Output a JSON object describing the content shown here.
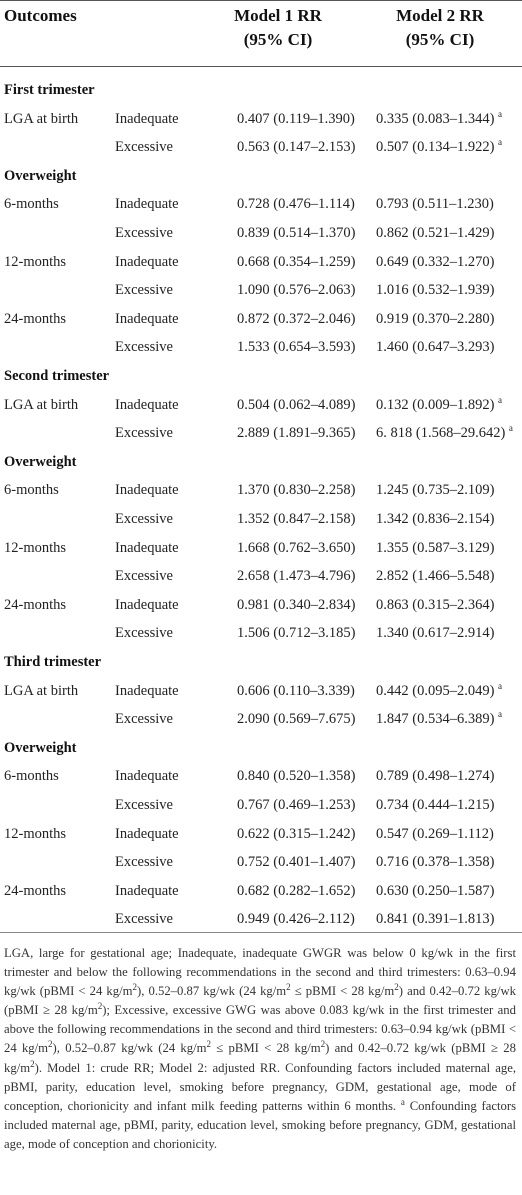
{
  "header": {
    "outcomes": "Outcomes",
    "model1_line1": "Model 1 RR",
    "model1_line2": "(95% CI)",
    "model2_line1": "Model 2 RR",
    "model2_line2": "(95% CI)"
  },
  "rows": [
    {
      "type": "section",
      "title": "First trimester"
    },
    {
      "type": "data",
      "outcome": "LGA at birth",
      "level": "Inadequate",
      "m1": "0.407 (0.119–1.390)",
      "m2": "0.335 (0.083–1.344)",
      "mark": "a"
    },
    {
      "type": "data",
      "outcome": "",
      "level": "Excessive",
      "m1": "0.563 (0.147–2.153)",
      "m2": "0.507 (0.134–1.922)",
      "mark": "a"
    },
    {
      "type": "section",
      "title": "Overweight"
    },
    {
      "type": "data",
      "outcome": "6-months",
      "level": "Inadequate",
      "m1": "0.728 (0.476–1.114)",
      "m2": "0.793 (0.511–1.230)",
      "mark": ""
    },
    {
      "type": "data",
      "outcome": "",
      "level": "Excessive",
      "m1": "0.839 (0.514–1.370)",
      "m2": "0.862 (0.521–1.429)",
      "mark": ""
    },
    {
      "type": "data",
      "outcome": "12-months",
      "level": "Inadequate",
      "m1": "0.668 (0.354–1.259)",
      "m2": "0.649 (0.332–1.270)",
      "mark": ""
    },
    {
      "type": "data",
      "outcome": "",
      "level": "Excessive",
      "m1": "1.090 (0.576–2.063)",
      "m2": "1.016 (0.532–1.939)",
      "mark": ""
    },
    {
      "type": "data",
      "outcome": "24-months",
      "level": "Inadequate",
      "m1": "0.872 (0.372–2.046)",
      "m2": "0.919 (0.370–2.280)",
      "mark": ""
    },
    {
      "type": "data",
      "outcome": "",
      "level": "Excessive",
      "m1": "1.533 (0.654–3.593)",
      "m2": "1.460 (0.647–3.293)",
      "mark": ""
    },
    {
      "type": "section",
      "title": "Second trimester"
    },
    {
      "type": "data",
      "outcome": "LGA at birth",
      "level": "Inadequate",
      "m1": "0.504 (0.062–4.089)",
      "m2": "0.132 (0.009–1.892)",
      "mark": "a"
    },
    {
      "type": "data",
      "outcome": "",
      "level": "Excessive",
      "m1": "2.889 (1.891–9.365)",
      "m2": "6. 818 (1.568–29.642)",
      "mark": "a"
    },
    {
      "type": "section",
      "title": "Overweight"
    },
    {
      "type": "data",
      "outcome": "6-months",
      "level": "Inadequate",
      "m1": "1.370 (0.830–2.258)",
      "m2": "1.245 (0.735–2.109)",
      "mark": ""
    },
    {
      "type": "data",
      "outcome": "",
      "level": "Excessive",
      "m1": "1.352 (0.847–2.158)",
      "m2": "1.342 (0.836–2.154)",
      "mark": ""
    },
    {
      "type": "data",
      "outcome": "12-months",
      "level": "Inadequate",
      "m1": "1.668 (0.762–3.650)",
      "m2": "1.355 (0.587–3.129)",
      "mark": ""
    },
    {
      "type": "data",
      "outcome": "",
      "level": "Excessive",
      "m1": "2.658 (1.473–4.796)",
      "m2": "2.852 (1.466–5.548)",
      "mark": ""
    },
    {
      "type": "data",
      "outcome": "24-months",
      "level": "Inadequate",
      "m1": "0.981 (0.340–2.834)",
      "m2": "0.863 (0.315–2.364)",
      "mark": ""
    },
    {
      "type": "data",
      "outcome": "",
      "level": "Excessive",
      "m1": "1.506 (0.712–3.185)",
      "m2": "1.340 (0.617–2.914)",
      "mark": ""
    },
    {
      "type": "section",
      "title": "Third trimester"
    },
    {
      "type": "data",
      "outcome": "LGA at birth",
      "level": "Inadequate",
      "m1": "0.606 (0.110–3.339)",
      "m2": "0.442 (0.095–2.049)",
      "mark": "a"
    },
    {
      "type": "data",
      "outcome": "",
      "level": "Excessive",
      "m1": "2.090 (0.569–7.675)",
      "m2": "1.847 (0.534–6.389)",
      "mark": "a"
    },
    {
      "type": "section",
      "title": "Overweight"
    },
    {
      "type": "data",
      "outcome": "6-months",
      "level": "Inadequate",
      "m1": "0.840 (0.520–1.358)",
      "m2": "0.789 (0.498–1.274)",
      "mark": ""
    },
    {
      "type": "data",
      "outcome": "",
      "level": "Excessive",
      "m1": "0.767 (0.469–1.253)",
      "m2": "0.734 (0.444–1.215)",
      "mark": ""
    },
    {
      "type": "data",
      "outcome": "12-months",
      "level": "Inadequate",
      "m1": "0.622 (0.315–1.242)",
      "m2": "0.547 (0.269–1.112)",
      "mark": ""
    },
    {
      "type": "data",
      "outcome": "",
      "level": "Excessive",
      "m1": "0.752 (0.401–1.407)",
      "m2": "0.716 (0.378–1.358)",
      "mark": ""
    },
    {
      "type": "data",
      "outcome": "24-months",
      "level": "Inadequate",
      "m1": "0.682 (0.282–1.652)",
      "m2": "0.630 (0.250–1.587)",
      "mark": ""
    },
    {
      "type": "data",
      "outcome": "",
      "level": "Excessive",
      "m1": "0.949 (0.426–2.112)",
      "m2": "0.841 (0.391–1.813)",
      "mark": ""
    }
  ],
  "footnote": {
    "p1": "LGA, large for gestational age; Inadequate, inadequate GWGR was below 0 kg/wk in the first trimester and below the following recommendations in the second and third trimesters: 0.63–0.94 kg/wk (pBMI < 24 kg/m",
    "p2": "), 0.52–0.87 kg/wk (24 kg/m",
    "p3": " ≤ pBMI < 28 kg/m",
    "p4": ") and 0.42–0.72 kg/wk (pBMI ≥ 28 kg/m",
    "p5": "); Excessive, excessive GWG was above 0.083 kg/wk in the first trimester and above the following recommendations in the second and third trimesters: 0.63–0.94 kg/wk (pBMI < 24 kg/m",
    "p6": "), 0.52–0.87 kg/wk (24 kg/m",
    "p7": " ≤ pBMI < 28 kg/m",
    "p8": ") and 0.42–0.72 kg/wk (pBMI ≥ 28 kg/m",
    "p9": "). Model 1: crude RR; Model 2: adjusted RR. Confounding factors included maternal age, pBMI, parity, education level, smoking before pregnancy, GDM, gestational age, mode of conception, chorionicity and infant milk feeding patterns within 6 months. ",
    "exp2": "2",
    "mark_a": "a",
    "p10": " Confounding factors included maternal age, pBMI, parity, education level, smoking before pregnancy, GDM, gestational age, mode of conception and chorionicity."
  }
}
